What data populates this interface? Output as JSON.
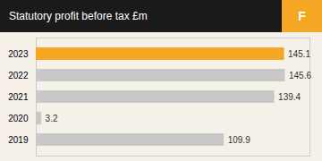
{
  "chart_data": {
    "type": "bar",
    "orientation": "horizontal",
    "title": "Statutory profit before tax £m",
    "annotations": [
      "F"
    ],
    "categories": [
      "2023",
      "2022",
      "2021",
      "2020",
      "2019"
    ],
    "values": [
      145.1,
      145.6,
      139.4,
      3.2,
      109.9
    ],
    "colors": [
      "#F5A623",
      "#C8C8C8",
      "#C8C8C8",
      "#C8C8C8",
      "#C8C8C8"
    ],
    "xlim": [
      0,
      160
    ],
    "data_labels": true,
    "tick_labels": "y",
    "grid": false
  }
}
